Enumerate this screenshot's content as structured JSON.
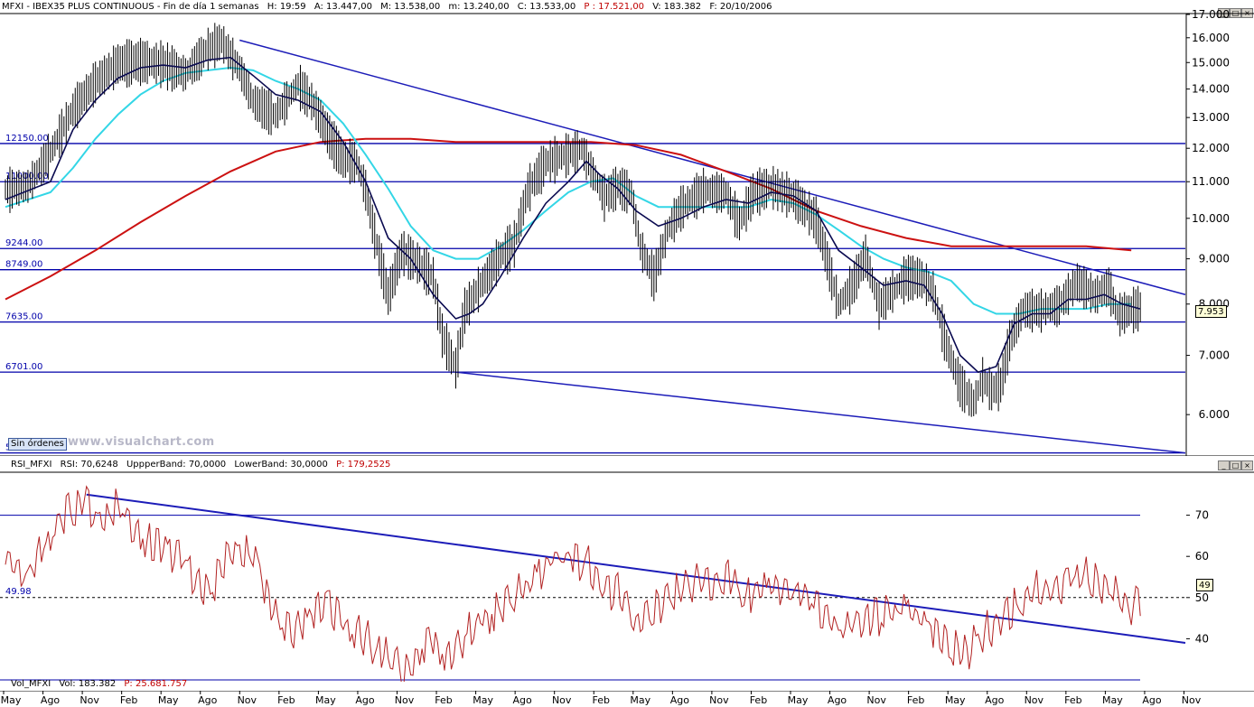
{
  "header": {
    "symbol": "MFXI - IBEX35 PLUS CONTINUOUS - Fin de día 1 semanas",
    "h": "H: 19:59",
    "a": "A: 13.447,00",
    "m1": "M: 13.538,00",
    "m2": "m: 13.240,00",
    "c": "C: 13.533,00",
    "p": "P : 17.521,00",
    "v": "V: 183.382",
    "f": "F: 20/10/2006"
  },
  "rsi_header": {
    "name": "RSI_MFXI",
    "rsi": "RSI: 70,6248",
    "upper": "UppperBand: 70,0000",
    "lower": "LowerBand: 30,0000",
    "p": "P: 179,2525"
  },
  "vol_header": {
    "name": "Vol_MFXI",
    "vol": "Vol: 183.382",
    "p": "P: 25.681.757"
  },
  "sin_ordenes": "Sin órdenes",
  "watermark": "www.visualchart.com",
  "current_price_label": "7.953",
  "rsi_current_label": "49",
  "colors": {
    "price": "#000000",
    "ma_fast": "#0a0a50",
    "ma_mid": "#33d6e6",
    "ma_slow": "#cc1111",
    "levels": "#0000aa",
    "trendline": "#1c1cb8",
    "rsi": "#b22222",
    "red_text": "#c00000"
  },
  "x_axis_labels": [
    "May",
    "Ago",
    "Nov",
    "Feb",
    "May",
    "Ago",
    "Nov",
    "Feb",
    "May",
    "Ago",
    "Nov",
    "Feb",
    "May",
    "Ago",
    "Nov",
    "Feb",
    "May",
    "Ago",
    "Nov",
    "Feb",
    "May",
    "Ago",
    "Nov",
    "Feb",
    "May",
    "Ago",
    "Nov",
    "Feb",
    "May",
    "Ago",
    "Nov"
  ],
  "chart_data": [
    {
      "type": "candlestick",
      "yscale": "log",
      "ylim": [
        5400,
        17000
      ],
      "y_ticks": [
        6000,
        7000,
        8000,
        9000,
        10000,
        11000,
        12000,
        13000,
        14000,
        15000,
        16000,
        17000
      ],
      "y_tick_labels": [
        "6.000",
        "7.000",
        "8.000",
        "9.000",
        "10.000",
        "11.000",
        "12.000",
        "13.000",
        "14.000",
        "15.000",
        "16.000",
        "17.000"
      ],
      "levels": [
        {
          "value": 12150,
          "label": "12150.00"
        },
        {
          "value": 11000,
          "label": "11000.00"
        },
        {
          "value": 9244,
          "label": "9244.00"
        },
        {
          "value": 8749,
          "label": "8749.00"
        },
        {
          "value": 7635,
          "label": "7635.00"
        },
        {
          "value": 6701,
          "label": "6701.00"
        },
        {
          "value": 5430,
          "label": "5430.00"
        }
      ],
      "price_path": [
        [
          0,
          10800
        ],
        [
          5,
          10900
        ],
        [
          10,
          11900
        ],
        [
          15,
          13300
        ],
        [
          20,
          14300
        ],
        [
          25,
          15000
        ],
        [
          30,
          15100
        ],
        [
          35,
          15000
        ],
        [
          40,
          14600
        ],
        [
          45,
          15600
        ],
        [
          48,
          15900
        ],
        [
          52,
          14800
        ],
        [
          55,
          13600
        ],
        [
          60,
          13100
        ],
        [
          65,
          14200
        ],
        [
          68,
          13600
        ],
        [
          72,
          12400
        ],
        [
          75,
          11700
        ],
        [
          78,
          11600
        ],
        [
          80,
          10800
        ],
        [
          82,
          9600
        ],
        [
          85,
          8200
        ],
        [
          88,
          9200
        ],
        [
          92,
          8900
        ],
        [
          95,
          8600
        ],
        [
          97,
          7400
        ],
        [
          100,
          6800
        ],
        [
          102,
          7900
        ],
        [
          106,
          8500
        ],
        [
          110,
          9100
        ],
        [
          113,
          9400
        ],
        [
          116,
          10800
        ],
        [
          120,
          11600
        ],
        [
          124,
          11800
        ],
        [
          128,
          12000
        ],
        [
          130,
          11400
        ],
        [
          133,
          10600
        ],
        [
          136,
          10900
        ],
        [
          139,
          10700
        ],
        [
          141,
          9300
        ],
        [
          144,
          8600
        ],
        [
          147,
          9700
        ],
        [
          150,
          10300
        ],
        [
          155,
          10800
        ],
        [
          160,
          10700
        ],
        [
          163,
          9900
        ],
        [
          166,
          10700
        ],
        [
          170,
          10900
        ],
        [
          175,
          10600
        ],
        [
          180,
          10000
        ],
        [
          182,
          9200
        ],
        [
          185,
          8000
        ],
        [
          188,
          8400
        ],
        [
          191,
          9100
        ],
        [
          194,
          8000
        ],
        [
          197,
          8300
        ],
        [
          200,
          8600
        ],
        [
          203,
          8600
        ],
        [
          206,
          8300
        ],
        [
          209,
          7200
        ],
        [
          212,
          6500
        ],
        [
          215,
          6200
        ],
        [
          217,
          6600
        ],
        [
          219,
          6400
        ],
        [
          221,
          6500
        ],
        [
          223,
          7300
        ],
        [
          226,
          7900
        ],
        [
          230,
          7900
        ],
        [
          234,
          8000
        ],
        [
          238,
          8500
        ],
        [
          242,
          8200
        ],
        [
          245,
          8400
        ],
        [
          247,
          7800
        ],
        [
          250,
          7900
        ],
        [
          252,
          7953
        ]
      ],
      "ma_fast": [
        [
          0,
          10500
        ],
        [
          10,
          11000
        ],
        [
          15,
          12600
        ],
        [
          20,
          13600
        ],
        [
          25,
          14400
        ],
        [
          30,
          14800
        ],
        [
          35,
          14900
        ],
        [
          40,
          14800
        ],
        [
          45,
          15100
        ],
        [
          50,
          15200
        ],
        [
          55,
          14500
        ],
        [
          60,
          13800
        ],
        [
          65,
          13600
        ],
        [
          70,
          13200
        ],
        [
          75,
          12200
        ],
        [
          80,
          11000
        ],
        [
          85,
          9500
        ],
        [
          90,
          9000
        ],
        [
          95,
          8200
        ],
        [
          100,
          7700
        ],
        [
          103,
          7800
        ],
        [
          106,
          8000
        ],
        [
          110,
          8600
        ],
        [
          115,
          9500
        ],
        [
          120,
          10400
        ],
        [
          125,
          11000
        ],
        [
          129,
          11600
        ],
        [
          132,
          11200
        ],
        [
          136,
          10800
        ],
        [
          140,
          10200
        ],
        [
          145,
          9800
        ],
        [
          150,
          10000
        ],
        [
          155,
          10300
        ],
        [
          160,
          10500
        ],
        [
          165,
          10400
        ],
        [
          170,
          10700
        ],
        [
          175,
          10600
        ],
        [
          180,
          10200
        ],
        [
          185,
          9200
        ],
        [
          190,
          8800
        ],
        [
          195,
          8400
        ],
        [
          200,
          8500
        ],
        [
          204,
          8400
        ],
        [
          208,
          7800
        ],
        [
          212,
          7000
        ],
        [
          216,
          6700
        ],
        [
          220,
          6800
        ],
        [
          224,
          7600
        ],
        [
          228,
          7800
        ],
        [
          232,
          7800
        ],
        [
          236,
          8100
        ],
        [
          240,
          8100
        ],
        [
          244,
          8200
        ],
        [
          248,
          8000
        ],
        [
          252,
          7900
        ]
      ],
      "ma_mid": [
        [
          0,
          10300
        ],
        [
          10,
          10700
        ],
        [
          15,
          11400
        ],
        [
          20,
          12300
        ],
        [
          25,
          13100
        ],
        [
          30,
          13800
        ],
        [
          35,
          14300
        ],
        [
          40,
          14600
        ],
        [
          45,
          14700
        ],
        [
          50,
          14800
        ],
        [
          55,
          14700
        ],
        [
          60,
          14300
        ],
        [
          65,
          14000
        ],
        [
          70,
          13600
        ],
        [
          75,
          12800
        ],
        [
          80,
          11800
        ],
        [
          85,
          10800
        ],
        [
          90,
          9800
        ],
        [
          95,
          9200
        ],
        [
          100,
          9000
        ],
        [
          105,
          9000
        ],
        [
          110,
          9300
        ],
        [
          115,
          9700
        ],
        [
          120,
          10200
        ],
        [
          125,
          10700
        ],
        [
          130,
          11000
        ],
        [
          135,
          11100
        ],
        [
          140,
          10600
        ],
        [
          145,
          10300
        ],
        [
          150,
          10300
        ],
        [
          155,
          10300
        ],
        [
          160,
          10300
        ],
        [
          165,
          10300
        ],
        [
          170,
          10500
        ],
        [
          175,
          10400
        ],
        [
          180,
          10100
        ],
        [
          185,
          9700
        ],
        [
          190,
          9300
        ],
        [
          195,
          9000
        ],
        [
          200,
          8800
        ],
        [
          205,
          8700
        ],
        [
          210,
          8500
        ],
        [
          215,
          8000
        ],
        [
          220,
          7800
        ],
        [
          225,
          7800
        ],
        [
          230,
          7900
        ],
        [
          235,
          7900
        ],
        [
          240,
          7900
        ],
        [
          245,
          8000
        ],
        [
          250,
          8000
        ]
      ],
      "ma_slow": [
        [
          0,
          8100
        ],
        [
          10,
          8600
        ],
        [
          20,
          9200
        ],
        [
          30,
          9900
        ],
        [
          40,
          10600
        ],
        [
          50,
          11300
        ],
        [
          60,
          11900
        ],
        [
          70,
          12200
        ],
        [
          80,
          12300
        ],
        [
          90,
          12300
        ],
        [
          100,
          12200
        ],
        [
          110,
          12200
        ],
        [
          120,
          12200
        ],
        [
          130,
          12200
        ],
        [
          140,
          12100
        ],
        [
          150,
          11800
        ],
        [
          160,
          11300
        ],
        [
          170,
          10800
        ],
        [
          180,
          10200
        ],
        [
          190,
          9800
        ],
        [
          200,
          9500
        ],
        [
          210,
          9300
        ],
        [
          220,
          9300
        ],
        [
          230,
          9300
        ],
        [
          240,
          9300
        ],
        [
          250,
          9200
        ]
      ],
      "trendlines": [
        [
          [
            52,
            15900
          ],
          [
            262,
            8200
          ]
        ],
        [
          [
            100,
            6701
          ],
          [
            262,
            5430
          ]
        ]
      ]
    },
    {
      "type": "line",
      "series": [
        {
          "name": "RSI_MFXI"
        }
      ],
      "ylim": [
        30,
        80
      ],
      "y_ticks": [
        40,
        50,
        60,
        70
      ],
      "upper_band": 70,
      "lower_band": 30,
      "level_label": "49.98",
      "rsi_path": [
        [
          0,
          58
        ],
        [
          5,
          55
        ],
        [
          10,
          65
        ],
        [
          15,
          72
        ],
        [
          18,
          74
        ],
        [
          20,
          68
        ],
        [
          25,
          72
        ],
        [
          30,
          65
        ],
        [
          35,
          62
        ],
        [
          40,
          58
        ],
        [
          45,
          50
        ],
        [
          50,
          62
        ],
        [
          55,
          60
        ],
        [
          60,
          45
        ],
        [
          65,
          42
        ],
        [
          70,
          49
        ],
        [
          75,
          44
        ],
        [
          80,
          40
        ],
        [
          85,
          35
        ],
        [
          88,
          32
        ],
        [
          92,
          38
        ],
        [
          95,
          40
        ],
        [
          98,
          36
        ],
        [
          100,
          38
        ],
        [
          105,
          44
        ],
        [
          110,
          48
        ],
        [
          115,
          52
        ],
        [
          118,
          56
        ],
        [
          120,
          58
        ],
        [
          125,
          60
        ],
        [
          130,
          58
        ],
        [
          133,
          50
        ],
        [
          136,
          52
        ],
        [
          140,
          44
        ],
        [
          145,
          48
        ],
        [
          150,
          52
        ],
        [
          155,
          54
        ],
        [
          160,
          55
        ],
        [
          165,
          50
        ],
        [
          170,
          52
        ],
        [
          175,
          53
        ],
        [
          180,
          48
        ],
        [
          185,
          42
        ],
        [
          190,
          44
        ],
        [
          195,
          46
        ],
        [
          200,
          47
        ],
        [
          205,
          44
        ],
        [
          210,
          38
        ],
        [
          213,
          36
        ],
        [
          216,
          40
        ],
        [
          220,
          44
        ],
        [
          224,
          48
        ],
        [
          228,
          52
        ],
        [
          232,
          52
        ],
        [
          236,
          54
        ],
        [
          240,
          55
        ],
        [
          244,
          52
        ],
        [
          248,
          50
        ],
        [
          250,
          48
        ],
        [
          252,
          49
        ]
      ],
      "trendline": [
        [
          18,
          75
        ],
        [
          262,
          39
        ]
      ]
    }
  ]
}
